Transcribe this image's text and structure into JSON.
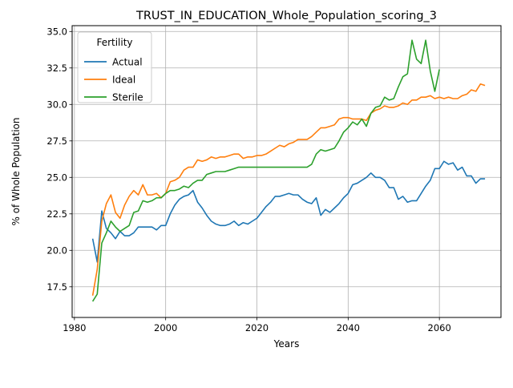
{
  "chart_data": {
    "type": "line",
    "title": "TRUST_IN_EDUCATION_Whole_Population_scoring_3",
    "xlabel": "Years",
    "ylabel": "% of Whole Population",
    "xlim": [
      1979.5,
      2073.5
    ],
    "ylim": [
      15.4,
      35.4
    ],
    "xticks": [
      1980,
      2000,
      2020,
      2040,
      2060
    ],
    "yticks": [
      17.5,
      20.0,
      22.5,
      25.0,
      27.5,
      30.0,
      32.5,
      35.0
    ],
    "ytick_labels": [
      "17.5",
      "20.0",
      "22.5",
      "25.0",
      "27.5",
      "30.0",
      "32.5",
      "35.0"
    ],
    "grid": true,
    "legend": {
      "title": "Fertility",
      "placement": "top-left"
    },
    "series": [
      {
        "name": "Actual",
        "color": "#1f77b4",
        "x": [
          1984,
          1985,
          1986,
          1987,
          1988,
          1989,
          1990,
          1991,
          1992,
          1993,
          1994,
          1995,
          1996,
          1997,
          1998,
          1999,
          2000,
          2001,
          2002,
          2003,
          2004,
          2005,
          2006,
          2007,
          2008,
          2009,
          2010,
          2011,
          2012,
          2013,
          2014,
          2015,
          2016,
          2017,
          2018,
          2019,
          2020,
          2021,
          2022,
          2023,
          2024,
          2025,
          2026,
          2027,
          2028,
          2029,
          2030,
          2031,
          2032,
          2033,
          2034,
          2035,
          2036,
          2037,
          2038,
          2039,
          2040,
          2041,
          2042,
          2043,
          2044,
          2045,
          2046,
          2047,
          2048,
          2049,
          2050,
          2051,
          2052,
          2053,
          2054,
          2055,
          2056,
          2057,
          2058,
          2059,
          2060,
          2061,
          2062,
          2063,
          2064,
          2065,
          2066,
          2067,
          2068,
          2069,
          2070
        ],
        "y": [
          20.8,
          19.2,
          22.7,
          21.5,
          21.2,
          20.8,
          21.3,
          21.0,
          21.0,
          21.2,
          21.6,
          21.6,
          21.6,
          21.6,
          21.4,
          21.7,
          21.7,
          22.5,
          23.1,
          23.5,
          23.7,
          23.8,
          24.1,
          23.3,
          22.9,
          22.4,
          22.0,
          21.8,
          21.7,
          21.7,
          21.8,
          22.0,
          21.7,
          21.9,
          21.8,
          22.0,
          22.2,
          22.6,
          23.0,
          23.3,
          23.7,
          23.7,
          23.8,
          23.9,
          23.8,
          23.8,
          23.5,
          23.3,
          23.2,
          23.6,
          22.4,
          22.8,
          22.6,
          22.9,
          23.2,
          23.6,
          23.9,
          24.5,
          24.6,
          24.8,
          25.0,
          25.3,
          25.0,
          25.0,
          24.8,
          24.3,
          24.3,
          23.5,
          23.7,
          23.3,
          23.4,
          23.4,
          23.9,
          24.4,
          24.8,
          25.6,
          25.6,
          26.1,
          25.9,
          26.0,
          25.5,
          25.7,
          25.1,
          25.1,
          24.6,
          24.9,
          24.9
        ]
      },
      {
        "name": "Ideal",
        "color": "#ff7f0e",
        "x": [
          1984,
          1985,
          1986,
          1987,
          1988,
          1989,
          1990,
          1991,
          1992,
          1993,
          1994,
          1995,
          1996,
          1997,
          1998,
          1999,
          2000,
          2001,
          2002,
          2003,
          2004,
          2005,
          2006,
          2007,
          2008,
          2009,
          2010,
          2011,
          2012,
          2013,
          2014,
          2015,
          2016,
          2017,
          2018,
          2019,
          2020,
          2021,
          2022,
          2023,
          2024,
          2025,
          2026,
          2027,
          2028,
          2029,
          2030,
          2031,
          2032,
          2033,
          2034,
          2035,
          2036,
          2037,
          2038,
          2039,
          2040,
          2041,
          2042,
          2043,
          2044,
          2045,
          2046,
          2047,
          2048,
          2049,
          2050,
          2051,
          2052,
          2053,
          2054,
          2055,
          2056,
          2057,
          2058,
          2059,
          2060,
          2061,
          2062,
          2063,
          2064,
          2065,
          2066,
          2067,
          2068,
          2069,
          2070
        ],
        "y": [
          16.9,
          18.7,
          22.0,
          23.2,
          23.8,
          22.6,
          22.2,
          23.1,
          23.7,
          24.1,
          23.8,
          24.5,
          23.8,
          23.8,
          23.9,
          23.6,
          23.9,
          24.7,
          24.8,
          25.0,
          25.5,
          25.7,
          25.7,
          26.2,
          26.1,
          26.2,
          26.4,
          26.3,
          26.4,
          26.4,
          26.5,
          26.6,
          26.6,
          26.3,
          26.4,
          26.4,
          26.5,
          26.5,
          26.6,
          26.8,
          27.0,
          27.2,
          27.1,
          27.3,
          27.4,
          27.6,
          27.6,
          27.6,
          27.8,
          28.1,
          28.4,
          28.4,
          28.5,
          28.6,
          29.0,
          29.1,
          29.1,
          29.0,
          29.0,
          29.0,
          28.9,
          29.4,
          29.6,
          29.7,
          29.9,
          29.8,
          29.8,
          29.9,
          30.1,
          30.0,
          30.3,
          30.3,
          30.5,
          30.5,
          30.6,
          30.4,
          30.5,
          30.4,
          30.5,
          30.4,
          30.4,
          30.6,
          30.7,
          31.0,
          30.9,
          31.4,
          31.3
        ]
      },
      {
        "name": "Sterile",
        "color": "#2ca02c",
        "x": [
          1984,
          1985,
          1986,
          1987,
          1988,
          1989,
          1990,
          1991,
          1992,
          1993,
          1994,
          1995,
          1996,
          1997,
          1998,
          1999,
          2000,
          2001,
          2002,
          2003,
          2004,
          2005,
          2006,
          2007,
          2008,
          2009,
          2010,
          2011,
          2012,
          2013,
          2014,
          2015,
          2016,
          2017,
          2018,
          2019,
          2020,
          2021,
          2022,
          2023,
          2024,
          2025,
          2026,
          2027,
          2028,
          2029,
          2030,
          2031,
          2032,
          2033,
          2034,
          2035,
          2036,
          2037,
          2038,
          2039,
          2040,
          2041,
          2042,
          2043,
          2044,
          2045,
          2046,
          2047,
          2048,
          2049,
          2050,
          2051,
          2052,
          2053,
          2054,
          2055,
          2056,
          2057,
          2058,
          2059,
          2060
        ],
        "y": [
          16.5,
          17.0,
          20.5,
          21.2,
          22.0,
          21.6,
          21.3,
          21.5,
          21.7,
          22.6,
          22.7,
          23.4,
          23.3,
          23.4,
          23.6,
          23.6,
          23.9,
          24.1,
          24.1,
          24.2,
          24.4,
          24.3,
          24.6,
          24.8,
          24.8,
          25.2,
          25.3,
          25.4,
          25.4,
          25.4,
          25.5,
          25.6,
          25.7,
          25.7,
          25.7,
          25.7,
          25.7,
          25.7,
          25.7,
          25.7,
          25.7,
          25.7,
          25.7,
          25.7,
          25.7,
          25.7,
          25.7,
          25.7,
          25.9,
          26.6,
          26.9,
          26.8,
          26.9,
          27.0,
          27.5,
          28.1,
          28.4,
          28.8,
          28.6,
          29.0,
          28.5,
          29.4,
          29.8,
          29.9,
          30.5,
          30.3,
          30.4,
          31.2,
          31.9,
          32.1,
          34.4,
          33.1,
          32.8,
          34.4,
          32.3,
          30.9,
          32.4
        ]
      }
    ]
  }
}
